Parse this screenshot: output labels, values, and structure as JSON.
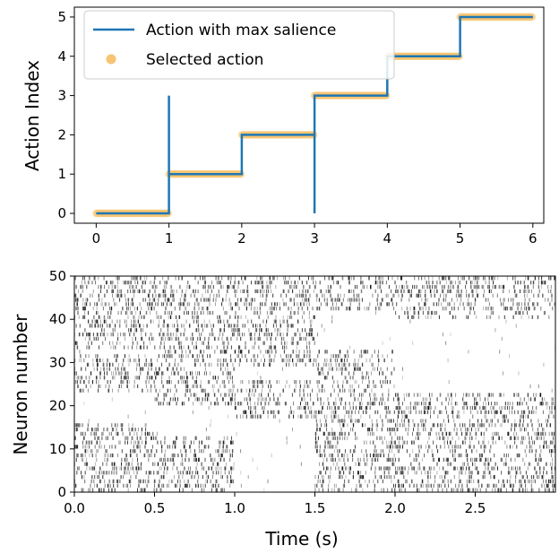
{
  "chart_data": [
    {
      "type": "line",
      "title": "",
      "xlabel": "",
      "ylabel": "Action Index",
      "xlim": [
        -0.3,
        6.15
      ],
      "ylim": [
        -0.25,
        5.25
      ],
      "xticks": [
        "0",
        "1",
        "2",
        "3",
        "4",
        "5",
        "6"
      ],
      "yticks": [
        "0",
        "1",
        "2",
        "3",
        "4",
        "5"
      ],
      "grid": false,
      "legend": "top-left",
      "series": [
        {
          "name": "Action with max salience",
          "color": "#1f77b4",
          "kind": "step-line",
          "x": [
            0,
            1,
            1,
            1,
            1,
            2,
            2,
            3,
            3,
            3,
            3,
            4,
            4,
            5,
            5,
            6
          ],
          "y": [
            0,
            0,
            3,
            3,
            1,
            1,
            2,
            2,
            0,
            0,
            3,
            3,
            4,
            4,
            5,
            5
          ]
        },
        {
          "name": "Selected action",
          "color": "#f8c471",
          "kind": "scatter",
          "segments": [
            {
              "action": 0,
              "x_start": 0,
              "x_end": 1
            },
            {
              "action": 1,
              "x_start": 1,
              "x_end": 2
            },
            {
              "action": 2,
              "x_start": 2,
              "x_end": 3
            },
            {
              "action": 3,
              "x_start": 3,
              "x_end": 4
            },
            {
              "action": 4,
              "x_start": 4,
              "x_end": 5
            },
            {
              "action": 5,
              "x_start": 5,
              "x_end": 6
            }
          ]
        }
      ]
    },
    {
      "type": "raster",
      "title": "",
      "xlabel": "Time (s)",
      "ylabel": "Neuron number",
      "xlim": [
        0,
        3
      ],
      "ylim": [
        0,
        50
      ],
      "xticks": [
        "0.0",
        "0.5",
        "1.0",
        "1.5",
        "2.0",
        "2.5"
      ],
      "yticks": [
        "0",
        "10",
        "20",
        "30",
        "40",
        "50"
      ],
      "grid": false,
      "neuron_count": 50,
      "epochs": [
        {
          "t_start": 0.0,
          "t_end": 0.5,
          "active_neurons": [
            [
              0,
              16
            ],
            [
              23,
              32
            ],
            [
              33,
              50
            ]
          ]
        },
        {
          "t_start": 0.5,
          "t_end": 1.0,
          "active_neurons": [
            [
              0,
              13
            ],
            [
              20,
              29
            ],
            [
              29,
              50
            ]
          ]
        },
        {
          "t_start": 1.0,
          "t_end": 1.5,
          "active_neurons": [
            [
              17,
              26
            ],
            [
              29,
              50
            ]
          ]
        },
        {
          "t_start": 1.5,
          "t_end": 2.0,
          "active_neurons": [
            [
              0,
              24
            ],
            [
              24,
              33
            ],
            [
              42,
              50
            ]
          ]
        },
        {
          "t_start": 2.0,
          "t_end": 3.0,
          "active_neurons": [
            [
              0,
              23
            ],
            [
              40,
              50
            ]
          ]
        }
      ]
    }
  ]
}
